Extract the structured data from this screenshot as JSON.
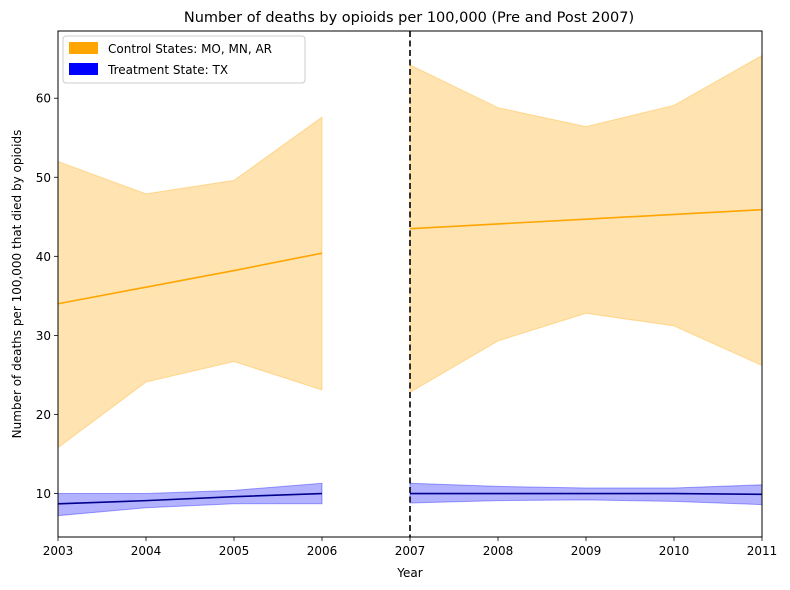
{
  "chart_data": {
    "type": "line",
    "title": "Number of deaths by opioids per 100,000 (Pre and Post 2007)",
    "xlabel": "Year",
    "ylabel": "Number of deaths per 100,000 that died by opioids",
    "xlim": [
      2003,
      2011
    ],
    "ylim": [
      4.5,
      68.5
    ],
    "xticks": [
      2003,
      2004,
      2005,
      2006,
      2007,
      2008,
      2009,
      2010,
      2011
    ],
    "yticks": [
      10,
      20,
      30,
      40,
      50,
      60
    ],
    "vline": {
      "x": 2007,
      "style": "dashed",
      "color": "#000000"
    },
    "legend": {
      "position": "top-left"
    },
    "series": [
      {
        "name": "Control States: MO, MN, AR",
        "color": "#FFA500",
        "band_color": "#FFA500",
        "segments": [
          {
            "x": [
              2003,
              2004,
              2005,
              2006
            ],
            "line": [
              34.0,
              36.1,
              38.2,
              40.4
            ],
            "lower": [
              15.8,
              24.1,
              26.7,
              23.1
            ],
            "upper": [
              52.0,
              47.9,
              49.6,
              57.6
            ]
          },
          {
            "x": [
              2007,
              2008,
              2009,
              2010,
              2011
            ],
            "line": [
              43.5,
              44.1,
              44.7,
              45.3,
              45.9
            ],
            "lower": [
              22.8,
              29.3,
              32.8,
              31.2,
              26.2
            ],
            "upper": [
              64.2,
              58.8,
              56.4,
              59.1,
              65.4
            ]
          }
        ]
      },
      {
        "name": "Treatment State: TX",
        "color": "#0000FF",
        "line_color": "#00008B",
        "band_color": "#0000FF",
        "segments": [
          {
            "x": [
              2003,
              2004,
              2005,
              2006
            ],
            "line": [
              8.7,
              9.1,
              9.6,
              10.0
            ],
            "lower": [
              7.2,
              8.2,
              8.7,
              8.7
            ],
            "upper": [
              10.0,
              10.0,
              10.4,
              11.3
            ]
          },
          {
            "x": [
              2007,
              2008,
              2009,
              2010,
              2011
            ],
            "line": [
              10.0,
              10.0,
              10.0,
              10.0,
              9.9
            ],
            "lower": [
              8.8,
              9.1,
              9.2,
              9.0,
              8.6
            ],
            "upper": [
              11.3,
              10.9,
              10.7,
              10.7,
              11.1
            ]
          }
        ]
      }
    ]
  }
}
